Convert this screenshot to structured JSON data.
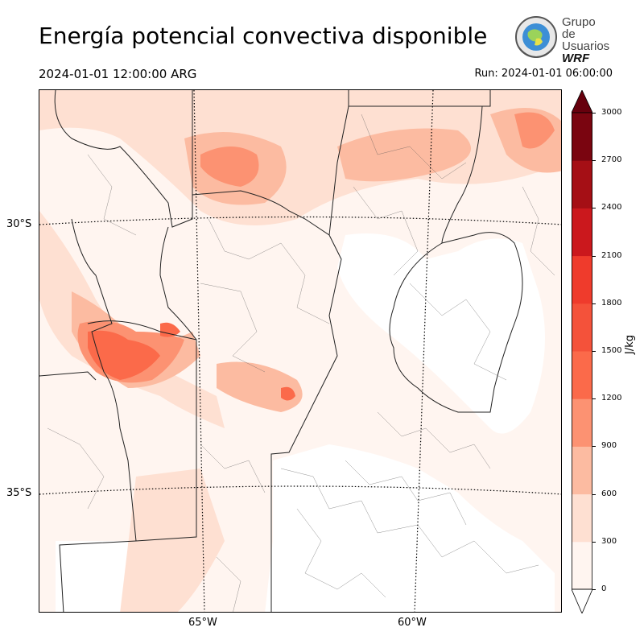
{
  "header": {
    "title": "Energía potencial convectiva disponible",
    "valid_time": "2024-01-01 12:00:00 ARG",
    "run_time": "Run: 2024-01-01 06:00:00"
  },
  "logo": {
    "line1": "Grupo de",
    "line2": "Usuarios",
    "line3": "WRF"
  },
  "map": {
    "lat_labels": [
      "30°S",
      "35°S"
    ],
    "lon_labels": [
      "65°W",
      "60°W"
    ]
  },
  "colorbar": {
    "unit": "J/kg",
    "levels": [
      0,
      300,
      600,
      900,
      1200,
      1500,
      1800,
      2100,
      2400,
      2700,
      3000
    ],
    "tick_labels": [
      "0",
      "300",
      "600",
      "900",
      "1200",
      "1500",
      "1800",
      "2100",
      "2400",
      "2700",
      "3000"
    ],
    "colors": [
      "#fff5f0",
      "#fee0d2",
      "#fcbba1",
      "#fc9272",
      "#fb6a4a",
      "#f4523a",
      "#ef3b2c",
      "#cb181d",
      "#a50f15",
      "#7a0510"
    ],
    "under_color": "#ffffff",
    "over_color": "#67000d"
  }
}
